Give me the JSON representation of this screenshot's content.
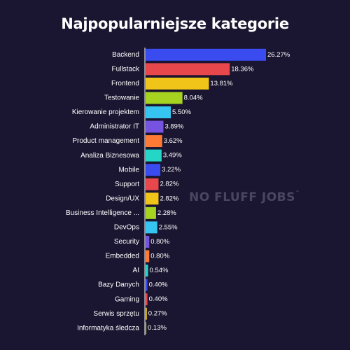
{
  "watermark": "NO FLUFF JOBS",
  "watermark_tm": "™",
  "chart_data": {
    "type": "bar",
    "orientation": "horizontal",
    "title": "Najpopularniejsze kategorie",
    "value_suffix": "%",
    "xlim": [
      0,
      26.27
    ],
    "grid": false,
    "categories": [
      "Backend",
      "Fullstack",
      "Frontend",
      "Testowanie",
      "Kierowanie projektem",
      "Administrator IT",
      "Product management",
      "Analiza Biznesowa",
      "Mobile",
      "Support",
      "Design/UX",
      "Business Intelligence ...",
      "DevOps",
      "Security",
      "Embedded",
      "AI",
      "Bazy Danych",
      "Gaming",
      "Serwis sprzętu",
      "Informatyka śledcza"
    ],
    "values": [
      26.27,
      18.36,
      13.81,
      8.04,
      5.5,
      3.89,
      3.62,
      3.49,
      3.22,
      2.82,
      2.82,
      2.28,
      2.55,
      0.8,
      0.8,
      0.54,
      0.4,
      0.4,
      0.27,
      0.13
    ],
    "labels": [
      "26.27%",
      "18.36%",
      "13.81%",
      "8.04%",
      "5.50%",
      "3.89%",
      "3.62%",
      "3.49%",
      "3.22%",
      "2.82%",
      "2.82%",
      "2.28%",
      "2.55%",
      "0.80%",
      "0.80%",
      "0.54%",
      "0.40%",
      "0.40%",
      "0.27%",
      "0.13%"
    ],
    "colors": [
      "#3a4cf0",
      "#e8474b",
      "#f0c419",
      "#a5d320",
      "#36c5f0",
      "#7653e0",
      "#ff7a35",
      "#24d6c6",
      "#3a4cf0",
      "#e8474b",
      "#f0c419",
      "#a5d320",
      "#36c5f0",
      "#7653e0",
      "#ff7a35",
      "#24d6c6",
      "#3a4cf0",
      "#e8474b",
      "#f0c419",
      "#a5d320"
    ]
  }
}
